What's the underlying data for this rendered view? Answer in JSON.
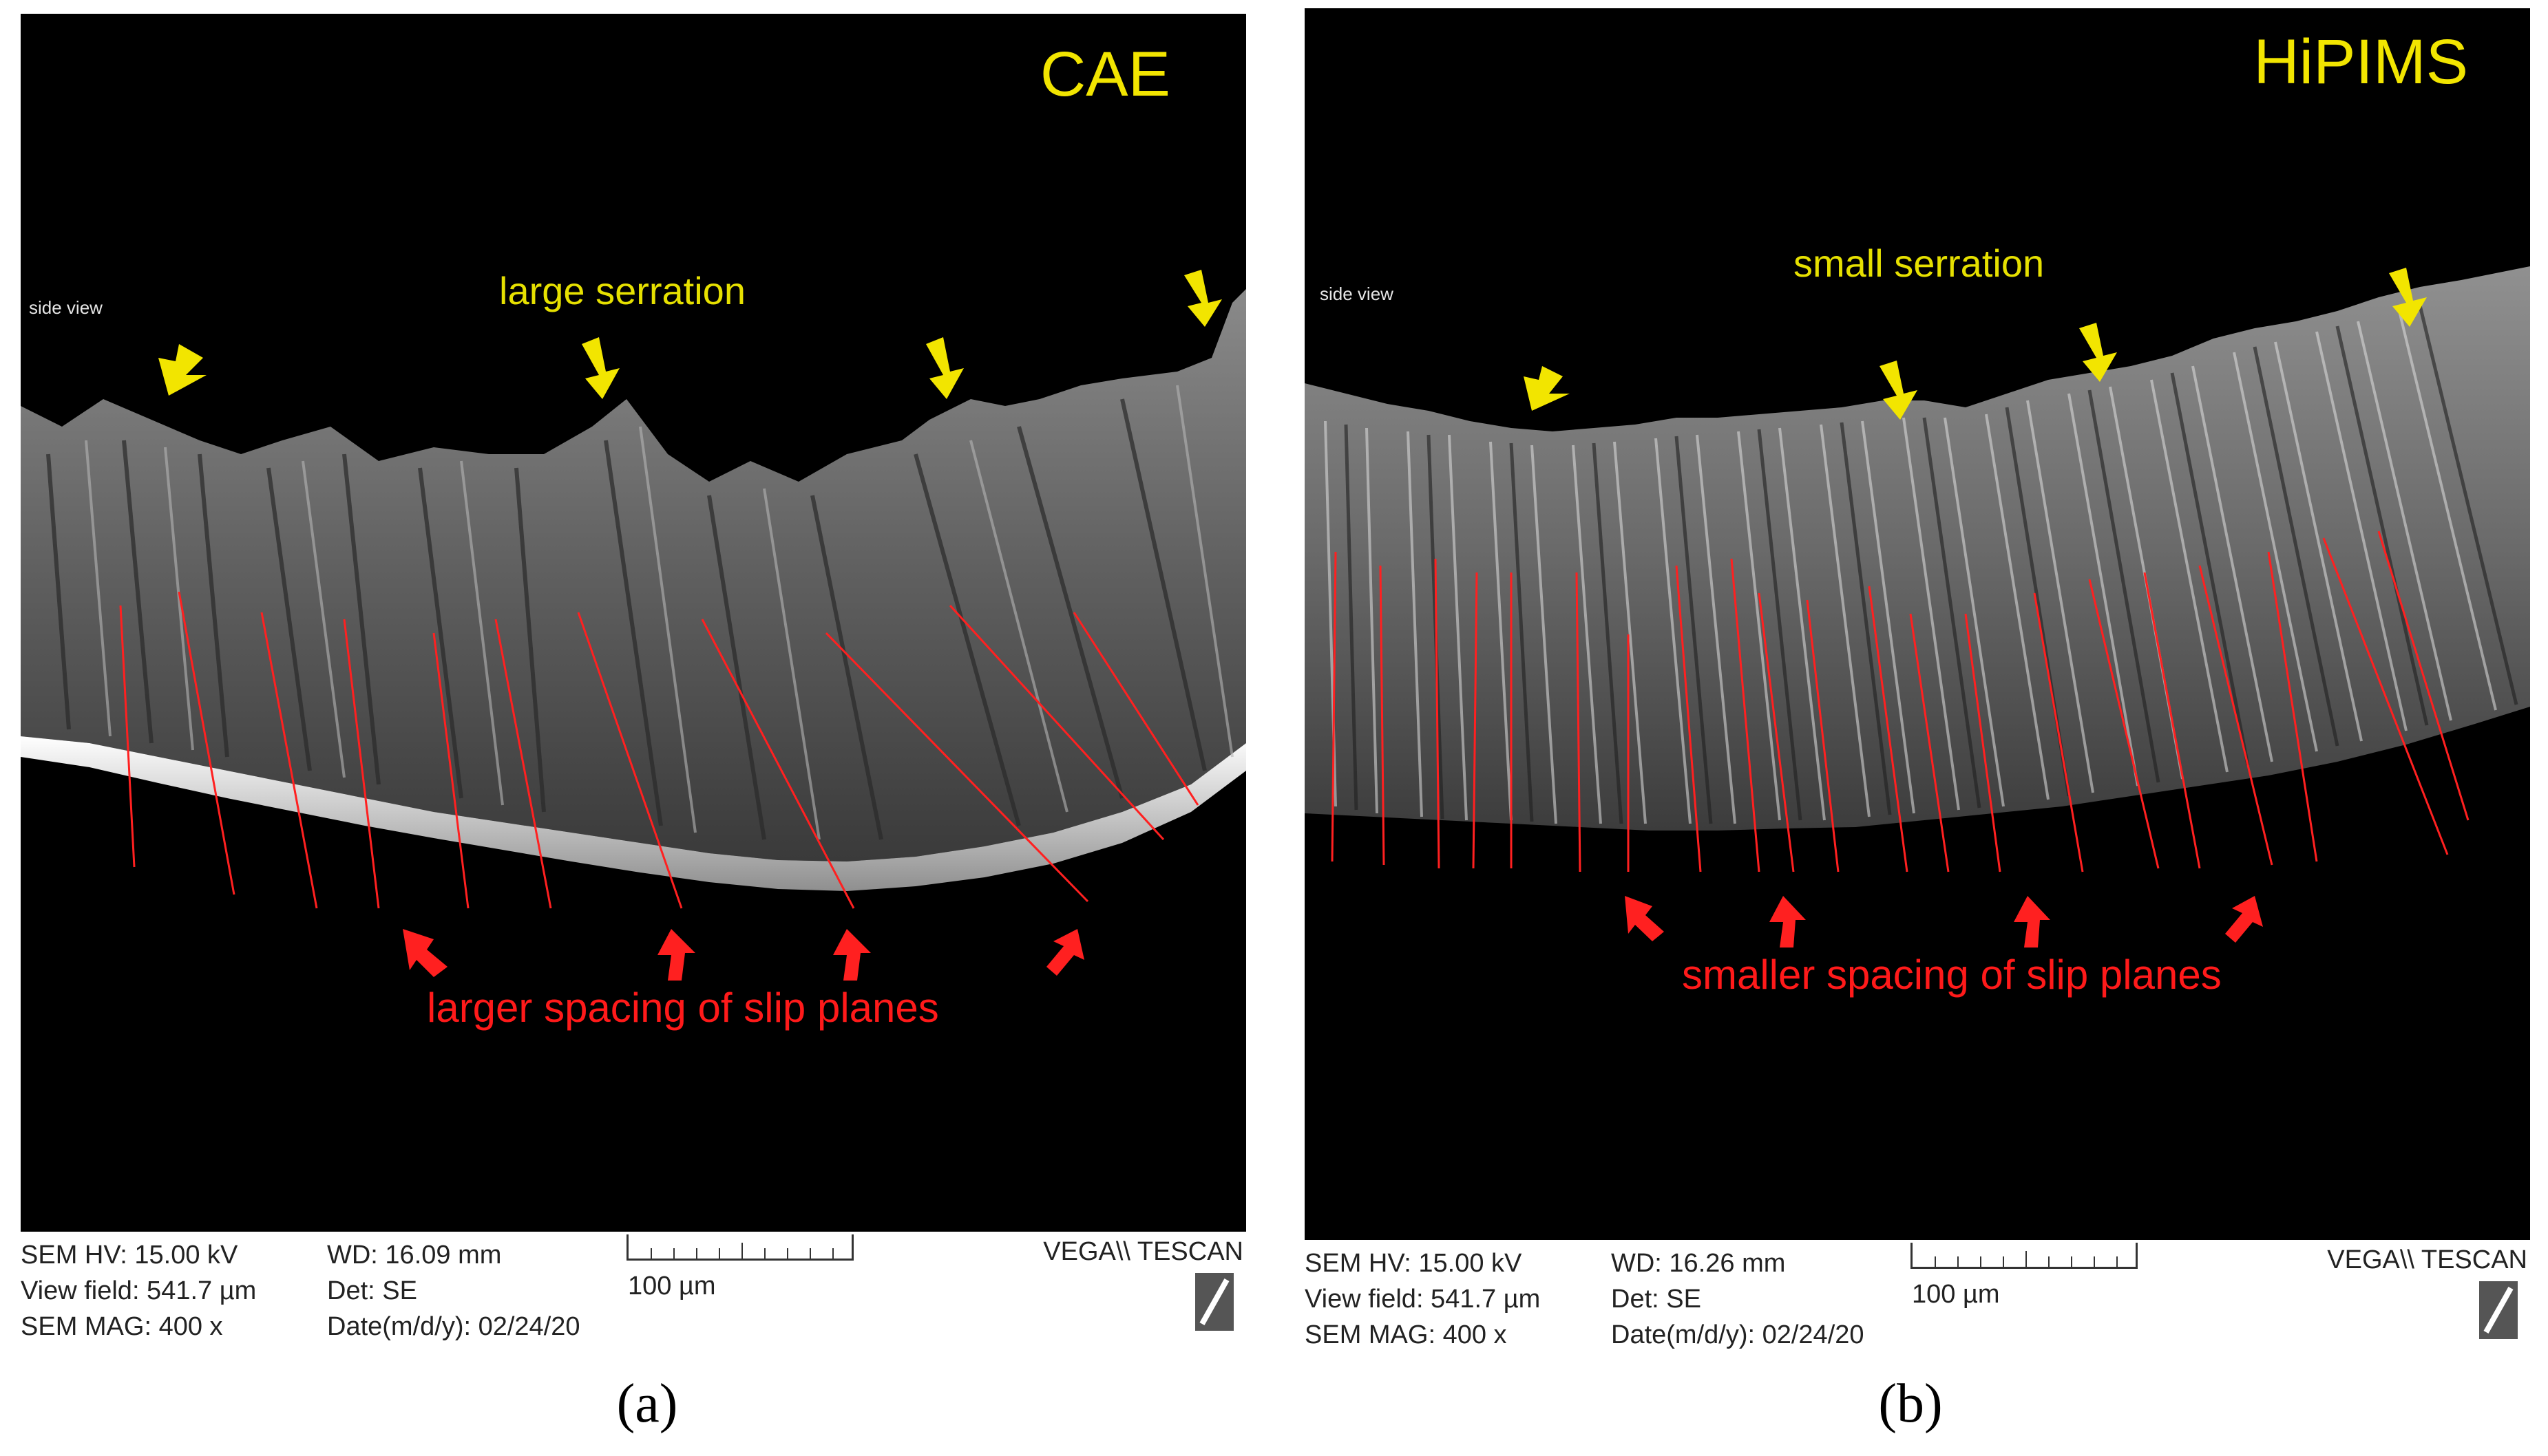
{
  "panels": [
    {
      "method": "CAE",
      "side_view": "side view",
      "serration_label": "large serration",
      "spacing_label": "larger spacing of slip planes",
      "meta": {
        "hv": "SEM HV: 15.00 kV",
        "view_field": "View field: 541.7 µm",
        "mag": "SEM MAG: 400 x",
        "wd": "WD: 16.09 mm",
        "det": "Det: SE",
        "date": "Date(m/d/y): 02/24/20",
        "scale": "100 µm",
        "vendor": "VEGA\\\\ TESCAN"
      },
      "caption": "(a)"
    },
    {
      "method": "HiPIMS",
      "side_view": "side view",
      "serration_label": "small serration",
      "spacing_label": "smaller spacing of slip planes",
      "meta": {
        "hv": "SEM HV: 15.00 kV",
        "view_field": "View field: 541.7 µm",
        "mag": "SEM MAG: 400 x",
        "wd": "WD: 16.26 mm",
        "det": "Det: SE",
        "date": "Date(m/d/y): 02/24/20",
        "scale": "100 µm",
        "vendor": "VEGA\\\\ TESCAN"
      },
      "caption": "(b)"
    }
  ],
  "colors": {
    "method_label": "#f2e500",
    "serration_arrows": "#f2e500",
    "slip_lines": "#ff1a1a",
    "image_bg": "#000000"
  }
}
